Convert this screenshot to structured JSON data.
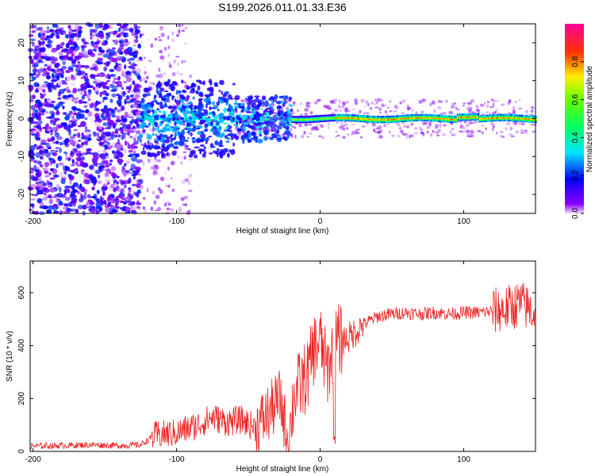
{
  "figure": {
    "title": "S199.2026.011.01.33.E36"
  },
  "colorbar": {
    "label": "Normalized spectral amplitude",
    "ticks": [
      "0.0",
      "0.2",
      "0.4",
      "0.6",
      "0.8"
    ]
  },
  "chart_data": [
    {
      "type": "heatmap",
      "title": "S199.2026.011.01.33.E36",
      "xlabel": "Height of straight line (km)",
      "ylabel": "Frequency (Hz)",
      "xlim": [
        -202,
        150
      ],
      "ylim": [
        -25,
        25
      ],
      "xticks": [
        "-200",
        "-100",
        "0",
        "100"
      ],
      "yticks": [
        "-20",
        "-10",
        "0",
        "10",
        "20"
      ],
      "colorbar_range": [
        0,
        1
      ],
      "colormap": "rainbow (purple=0, red/magenta=1)",
      "features": [
        {
          "x_range": [
            -202,
            -125
          ],
          "freq_range": [
            -25,
            25
          ],
          "level": "noise 0.0-0.25"
        },
        {
          "x_range": [
            -125,
            -20
          ],
          "freq_range": [
            -12,
            12
          ],
          "level": "scattered 0.2-0.5, peak near 0 Hz"
        },
        {
          "x_range": [
            -20,
            150
          ],
          "freq_range": [
            -1,
            1
          ],
          "level": "narrow line 0.5-1.0 centered on 0 Hz"
        }
      ]
    },
    {
      "type": "line",
      "xlabel": "Height of straight line (km)",
      "ylabel": "SNR (10 * v/v)",
      "xlim": [
        -202,
        150
      ],
      "ylim": [
        0,
        720
      ],
      "xticks": [
        "-200",
        "-100",
        "0",
        "100"
      ],
      "yticks": [
        "0",
        "200",
        "400",
        "600"
      ],
      "series": [
        {
          "name": "SNR",
          "color": "#ee2222",
          "x": [
            -202,
            -180,
            -160,
            -140,
            -125,
            -115,
            -100,
            -85,
            -75,
            -65,
            -55,
            -45,
            -35,
            -28,
            -22,
            -18,
            -12,
            -8,
            -5,
            0,
            5,
            10,
            15,
            20,
            30,
            40,
            50,
            60,
            70,
            80,
            90,
            100,
            110,
            120,
            130,
            140,
            150
          ],
          "y": [
            20,
            22,
            25,
            22,
            25,
            60,
            70,
            100,
            130,
            110,
            120,
            90,
            150,
            200,
            40,
            220,
            260,
            300,
            380,
            420,
            300,
            420,
            420,
            430,
            480,
            510,
            520,
            525,
            520,
            525,
            520,
            525,
            525,
            530,
            540,
            560,
            520
          ]
        }
      ]
    }
  ]
}
